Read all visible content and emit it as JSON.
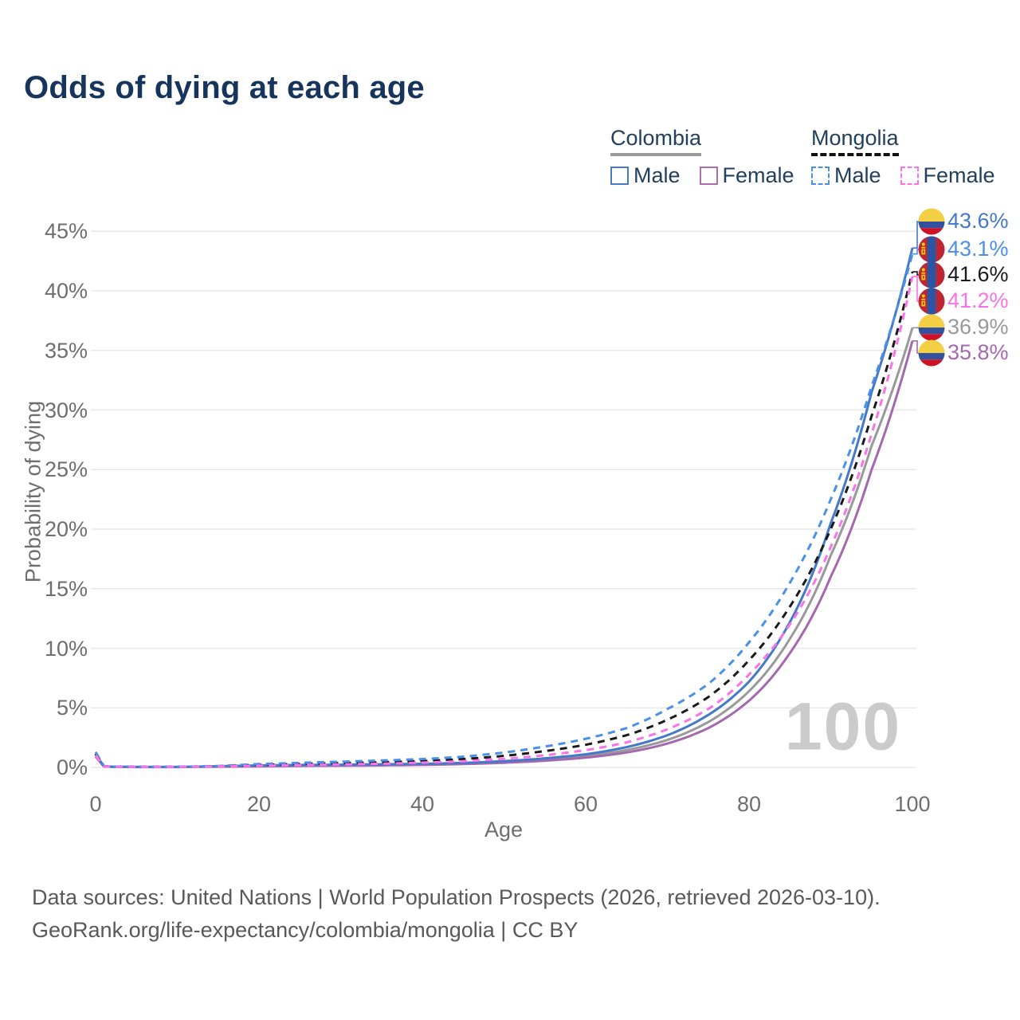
{
  "title": "Odds of dying at each age",
  "legend": {
    "groups": [
      {
        "country": "Colombia",
        "line_color": "#9a9a9a",
        "line_style": "solid",
        "items": [
          {
            "label": "Male",
            "box_color": "#4379c8",
            "box_style": "solid"
          },
          {
            "label": "Female",
            "box_color": "#b06dab",
            "box_style": "solid"
          }
        ]
      },
      {
        "country": "Mongolia",
        "line_color": "#111111",
        "line_style": "dashed",
        "items": [
          {
            "label": "Male",
            "box_color": "#4a90e8",
            "box_style": "dashed"
          },
          {
            "label": "Female",
            "box_color": "#fb72e8",
            "box_style": "dashed"
          }
        ]
      }
    ]
  },
  "chart_data": {
    "type": "line",
    "title": "Odds of dying at each age",
    "xlabel": "Age",
    "ylabel": "Probability of dying",
    "xlim": [
      0,
      100
    ],
    "ylim": [
      0,
      45
    ],
    "x_ticks": [
      0,
      20,
      40,
      60,
      80,
      100
    ],
    "y_ticks": [
      "0%",
      "5%",
      "10%",
      "15%",
      "20%",
      "25%",
      "30%",
      "35%",
      "40%",
      "45%"
    ],
    "grid": "horizontal",
    "legend_position": "top-right",
    "watermark": "100",
    "x": [
      0,
      1,
      2,
      5,
      10,
      15,
      20,
      25,
      30,
      35,
      40,
      45,
      50,
      55,
      60,
      65,
      70,
      75,
      80,
      85,
      90,
      95,
      100
    ],
    "series": [
      {
        "name": "Colombia Male",
        "country": "Colombia",
        "sex": "male",
        "color": "#4379c8",
        "dash": false,
        "end_label": "43.6%",
        "end_value": 43.6,
        "values": [
          1.1,
          0.1,
          0.06,
          0.04,
          0.04,
          0.1,
          0.17,
          0.21,
          0.23,
          0.26,
          0.3,
          0.38,
          0.52,
          0.76,
          1.1,
          1.7,
          2.7,
          4.4,
          7.2,
          12.2,
          20.5,
          31.5,
          43.6
        ]
      },
      {
        "name": "Mongolia Male",
        "country": "Mongolia",
        "sex": "male",
        "color": "#4a90e8",
        "dash": true,
        "end_label": "43.1%",
        "end_value": 43.1,
        "values": [
          1.3,
          0.12,
          0.07,
          0.05,
          0.05,
          0.12,
          0.28,
          0.38,
          0.48,
          0.58,
          0.7,
          0.9,
          1.25,
          1.75,
          2.4,
          3.3,
          4.9,
          7.0,
          10.5,
          15.5,
          22.5,
          32.0,
          43.1
        ]
      },
      {
        "name": "Mongolia Both sexes",
        "country": "Mongolia",
        "sex": "both",
        "color": "#1a1a1a",
        "dash": true,
        "end_label": "41.6%",
        "end_value": 41.6,
        "values": [
          1.15,
          0.1,
          0.06,
          0.045,
          0.045,
          0.1,
          0.21,
          0.29,
          0.36,
          0.44,
          0.54,
          0.7,
          0.97,
          1.37,
          1.9,
          2.7,
          4.0,
          5.9,
          9.0,
          13.5,
          20.0,
          29.5,
          41.6
        ]
      },
      {
        "name": "Mongolia Female",
        "country": "Mongolia",
        "sex": "female",
        "color": "#fb72e8",
        "dash": true,
        "end_label": "41.2%",
        "end_value": 41.2,
        "values": [
          1.0,
          0.09,
          0.05,
          0.04,
          0.04,
          0.08,
          0.14,
          0.19,
          0.25,
          0.31,
          0.4,
          0.52,
          0.72,
          1.02,
          1.45,
          2.1,
          3.2,
          4.9,
          7.8,
          12.0,
          18.5,
          28.0,
          41.2
        ]
      },
      {
        "name": "Colombia Both sexes",
        "country": "Colombia",
        "sex": "both",
        "color": "#999999",
        "dash": false,
        "end_label": "36.9%",
        "end_value": 36.9,
        "values": [
          1.0,
          0.09,
          0.05,
          0.035,
          0.035,
          0.08,
          0.13,
          0.16,
          0.18,
          0.21,
          0.25,
          0.33,
          0.46,
          0.66,
          0.95,
          1.45,
          2.3,
          3.8,
          6.4,
          10.8,
          17.8,
          27.0,
          36.9
        ]
      },
      {
        "name": "Colombia Female",
        "country": "Colombia",
        "sex": "female",
        "color": "#a468ae",
        "dash": false,
        "end_label": "35.8%",
        "end_value": 35.8,
        "values": [
          0.9,
          0.08,
          0.045,
          0.03,
          0.03,
          0.06,
          0.09,
          0.12,
          0.14,
          0.17,
          0.21,
          0.28,
          0.39,
          0.56,
          0.82,
          1.25,
          2.0,
          3.3,
          5.6,
          9.6,
          16.0,
          25.0,
          35.8
        ]
      }
    ],
    "callout_label_y": [
      278,
      313,
      345,
      378,
      411,
      443
    ],
    "flag_colors": {
      "colombia": {
        "yellow": "#f2cf43",
        "blue": "#31519e",
        "red": "#cf1126"
      },
      "mongolia": {
        "red": "#bf2633",
        "blue": "#2d55a2",
        "soyombo": "#f7cf08"
      }
    }
  },
  "footer": {
    "line1": "Data sources: United Nations | World Population Prospects (2026, retrieved 2026-03-10).",
    "line2": "GeoRank.org/life-expectancy/colombia/mongolia | CC BY"
  }
}
